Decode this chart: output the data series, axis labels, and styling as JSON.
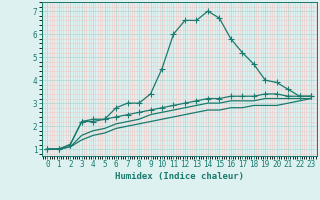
{
  "xlabel": "Humidex (Indice chaleur)",
  "x_values": [
    0,
    1,
    2,
    3,
    4,
    5,
    6,
    7,
    8,
    9,
    10,
    11,
    12,
    13,
    14,
    15,
    16,
    17,
    18,
    19,
    20,
    21,
    22,
    23
  ],
  "line1_y": [
    1.0,
    1.0,
    1.2,
    2.2,
    2.3,
    2.3,
    2.8,
    3.0,
    3.0,
    3.4,
    4.5,
    6.0,
    6.6,
    6.6,
    7.0,
    6.7,
    5.8,
    5.2,
    4.7,
    4.0,
    3.9,
    3.6,
    3.3,
    3.3
  ],
  "line2_y": [
    1.0,
    1.0,
    1.2,
    2.2,
    2.2,
    2.3,
    2.4,
    2.5,
    2.6,
    2.7,
    2.8,
    2.9,
    3.0,
    3.1,
    3.2,
    3.2,
    3.3,
    3.3,
    3.3,
    3.4,
    3.4,
    3.3,
    3.3,
    3.3
  ],
  "line3_y": [
    1.0,
    1.0,
    1.1,
    1.6,
    1.8,
    1.9,
    2.1,
    2.2,
    2.3,
    2.5,
    2.6,
    2.7,
    2.8,
    2.9,
    3.0,
    3.0,
    3.1,
    3.1,
    3.1,
    3.2,
    3.2,
    3.2,
    3.2,
    3.2
  ],
  "line4_y": [
    1.0,
    1.0,
    1.1,
    1.4,
    1.6,
    1.7,
    1.9,
    2.0,
    2.1,
    2.2,
    2.3,
    2.4,
    2.5,
    2.6,
    2.7,
    2.7,
    2.8,
    2.8,
    2.9,
    2.9,
    2.9,
    3.0,
    3.1,
    3.2
  ],
  "line_color": "#1a7a6e",
  "bg_color": "#ddf2f0",
  "grid_minor_color": "#f0c8c8",
  "grid_major_color": "#b8d8d4",
  "ylim": [
    0.7,
    7.4
  ],
  "xlim": [
    -0.5,
    23.5
  ],
  "yticks": [
    1,
    2,
    3,
    4,
    5,
    6,
    7
  ],
  "xticks": [
    0,
    1,
    2,
    3,
    4,
    5,
    6,
    7,
    8,
    9,
    10,
    11,
    12,
    13,
    14,
    15,
    16,
    17,
    18,
    19,
    20,
    21,
    22,
    23
  ]
}
